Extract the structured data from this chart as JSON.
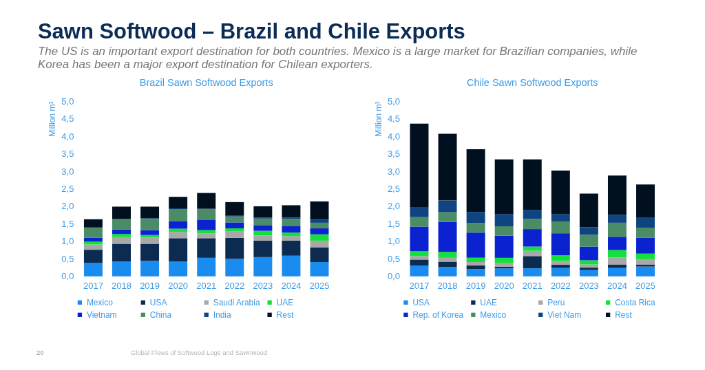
{
  "chart_data": [
    {
      "type": "other",
      "title": "Sawn Softwood – Brazil and Chile Exports",
      "subtitle": "The US is an important export destination for both countries. Mexico is a large market for Brazilian companies, while Korea has been a major export destination for Chilean exporters.",
      "annotations": [
        "20",
        "Global Flows of Softwood Logs and Sawnwood"
      ]
    },
    {
      "type": "bar",
      "stacked": true,
      "title": "Brazil Sawn Softwood Exports",
      "ylabel": "Million m³",
      "legend": "bottom",
      "categories": [
        "2017",
        "2018",
        "2019",
        "2020",
        "2021",
        "2022",
        "2023",
        "2024",
        "2025"
      ],
      "ylim": [
        0,
        5
      ],
      "yticks": [
        {
          "value": 0,
          "label": "0,0"
        },
        {
          "value": 0.5,
          "label": "0,5"
        },
        {
          "value": 1,
          "label": "1,0"
        },
        {
          "value": 1.5,
          "label": "1,5"
        },
        {
          "value": 2,
          "label": "2,0"
        },
        {
          "value": 2.5,
          "label": "2,5"
        },
        {
          "value": 3,
          "label": "3,0"
        },
        {
          "value": 3.5,
          "label": "3,5"
        },
        {
          "value": 4,
          "label": "4,0"
        },
        {
          "value": 4.5,
          "label": "4,5"
        },
        {
          "value": 5,
          "label": "5,0"
        }
      ],
      "series": [
        {
          "name": "Mexico",
          "color": "#1a8cf0",
          "values": [
            0.39,
            0.42,
            0.44,
            0.42,
            0.53,
            0.5,
            0.55,
            0.59,
            0.41
          ]
        },
        {
          "name": "USA",
          "color": "#0c2b50",
          "values": [
            0.37,
            0.51,
            0.49,
            0.67,
            0.56,
            0.6,
            0.47,
            0.43,
            0.42
          ]
        },
        {
          "name": "Saudi Arabia",
          "color": "#a8a8a8",
          "values": [
            0.15,
            0.19,
            0.18,
            0.18,
            0.14,
            0.18,
            0.15,
            0.13,
            0.19
          ]
        },
        {
          "name": "UAE",
          "color": "#14e03c",
          "values": [
            0.08,
            0.09,
            0.07,
            0.09,
            0.09,
            0.09,
            0.13,
            0.1,
            0.18
          ]
        },
        {
          "name": "Vietnam",
          "color": "#0a22d0",
          "values": [
            0.11,
            0.13,
            0.14,
            0.22,
            0.3,
            0.17,
            0.15,
            0.18,
            0.17
          ]
        },
        {
          "name": "China",
          "color": "#4a8c66",
          "values": [
            0.29,
            0.28,
            0.32,
            0.34,
            0.29,
            0.17,
            0.2,
            0.21,
            0.16
          ]
        },
        {
          "name": "India",
          "color": "#0e4580",
          "values": [
            0.02,
            0.02,
            0.02,
            0.02,
            0.02,
            0.02,
            0.03,
            0.04,
            0.09
          ]
        },
        {
          "name": "Rest",
          "color": "#00101f",
          "values": [
            0.22,
            0.35,
            0.33,
            0.33,
            0.45,
            0.39,
            0.32,
            0.35,
            0.52
          ]
        }
      ]
    },
    {
      "type": "bar",
      "stacked": true,
      "title": "Chile Sawn Softwood Exports",
      "ylabel": "Million m³",
      "legend": "bottom",
      "categories": [
        "2017",
        "2018",
        "2019",
        "2020",
        "2021",
        "2022",
        "2023",
        "2024",
        "2025"
      ],
      "ylim": [
        0,
        5
      ],
      "yticks": [
        {
          "value": 0,
          "label": "0,0"
        },
        {
          "value": 0.5,
          "label": "0,5"
        },
        {
          "value": 1,
          "label": "1,0"
        },
        {
          "value": 1.5,
          "label": "1,5"
        },
        {
          "value": 2,
          "label": "2,0"
        },
        {
          "value": 2.5,
          "label": "2,5"
        },
        {
          "value": 3,
          "label": "3,0"
        },
        {
          "value": 3.5,
          "label": "3,5"
        },
        {
          "value": 4,
          "label": "4,0"
        },
        {
          "value": 4.5,
          "label": "4,5"
        },
        {
          "value": 5,
          "label": "5,0"
        }
      ],
      "series": [
        {
          "name": "USA",
          "color": "#1a8cf0",
          "values": [
            0.31,
            0.27,
            0.21,
            0.23,
            0.23,
            0.24,
            0.18,
            0.24,
            0.28
          ]
        },
        {
          "name": "UAE",
          "color": "#0c2b50",
          "values": [
            0.17,
            0.15,
            0.1,
            0.05,
            0.35,
            0.09,
            0.07,
            0.1,
            0.06
          ]
        },
        {
          "name": "Peru",
          "color": "#a8a8a8",
          "values": [
            0.1,
            0.11,
            0.1,
            0.11,
            0.15,
            0.11,
            0.09,
            0.2,
            0.15
          ]
        },
        {
          "name": "Costa Rica",
          "color": "#14e03c",
          "values": [
            0.14,
            0.17,
            0.12,
            0.14,
            0.12,
            0.16,
            0.12,
            0.21,
            0.16
          ]
        },
        {
          "name": "Rep. of Korea",
          "color": "#0a22d0",
          "values": [
            0.7,
            0.86,
            0.72,
            0.63,
            0.5,
            0.63,
            0.39,
            0.38,
            0.45
          ]
        },
        {
          "name": "Mexico",
          "color": "#4a8c66",
          "values": [
            0.27,
            0.27,
            0.27,
            0.27,
            0.29,
            0.33,
            0.34,
            0.4,
            0.29
          ]
        },
        {
          "name": "Viet Nam",
          "color": "#0e4580",
          "values": [
            0.29,
            0.34,
            0.32,
            0.35,
            0.26,
            0.22,
            0.21,
            0.23,
            0.28
          ]
        },
        {
          "name": "Rest",
          "color": "#00101f",
          "values": [
            2.38,
            1.9,
            1.79,
            1.56,
            1.44,
            1.24,
            0.96,
            1.12,
            0.95
          ]
        }
      ]
    }
  ]
}
